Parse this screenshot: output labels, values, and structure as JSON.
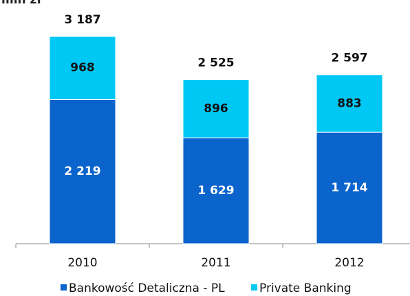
{
  "chart_data": {
    "type": "stacked_bar",
    "unit": "mln zł",
    "categories": [
      "2010",
      "2011",
      "2012"
    ],
    "series": [
      {
        "name": "Bankowość Detaliczna - PL",
        "color": "#0a64cc",
        "values": [
          2219,
          1629,
          1714
        ],
        "value_labels": [
          "2 219",
          "1 629",
          "1 714"
        ]
      },
      {
        "name": "Private Banking",
        "color": "#00c8f5",
        "values": [
          968,
          896,
          883
        ],
        "value_labels": [
          "968",
          "896",
          "883"
        ]
      }
    ],
    "totals": [
      3187,
      2525,
      2597
    ],
    "total_labels": [
      "3 187",
      "2 525",
      "2 597"
    ],
    "legend": "bottom"
  }
}
